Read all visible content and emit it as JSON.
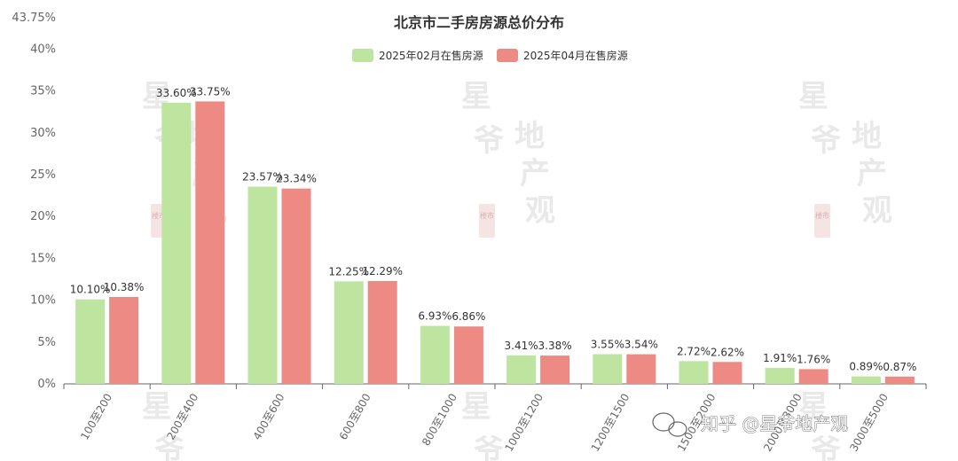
{
  "chart_data": {
    "type": "bar",
    "title": "北京市二手房房源总价分布",
    "categories": [
      "100至200",
      "200至400",
      "400至600",
      "600至800",
      "800至1000",
      "1000至1200",
      "1200至1500",
      "1500至2000",
      "2000至3000",
      "3000至5000"
    ],
    "series": [
      {
        "name": "2025年02月在售房源",
        "color": "#bde5a0",
        "values": [
          10.1,
          33.6,
          23.57,
          12.25,
          6.93,
          3.41,
          3.55,
          2.72,
          1.91,
          0.89
        ],
        "labels": [
          "10.10%",
          "33.60%",
          "23.57%",
          "12.25%",
          "6.93%",
          "3.41%",
          "3.55%",
          "2.72%",
          "1.91%",
          "0.89%"
        ]
      },
      {
        "name": "2025年04月在售房源",
        "color": "#ee8a84",
        "values": [
          10.38,
          33.75,
          23.34,
          12.29,
          6.86,
          3.38,
          3.54,
          2.62,
          1.76,
          0.87
        ],
        "labels": [
          "10.38%",
          "33.75%",
          "23.34%",
          "12.29%",
          "6.86%",
          "3.38%",
          "3.54%",
          "2.62%",
          "1.76%",
          "0.87%"
        ]
      }
    ],
    "ylim": [
      0,
      43.75
    ],
    "yticks": [
      0,
      5,
      10,
      15,
      20,
      25,
      30,
      35,
      40,
      43.75
    ],
    "ytick_labels": [
      "0%",
      "5%",
      "10%",
      "15%",
      "20%",
      "25%",
      "30%",
      "35%",
      "40%",
      "43.75%"
    ],
    "legend_position": "top-center",
    "grid": false
  },
  "watermark": {
    "xing": "星",
    "ye": "爷",
    "di": "地",
    "chan": "产",
    "guan": "观",
    "seal": "楼市",
    "footer": "知乎 @星爷地产观"
  }
}
